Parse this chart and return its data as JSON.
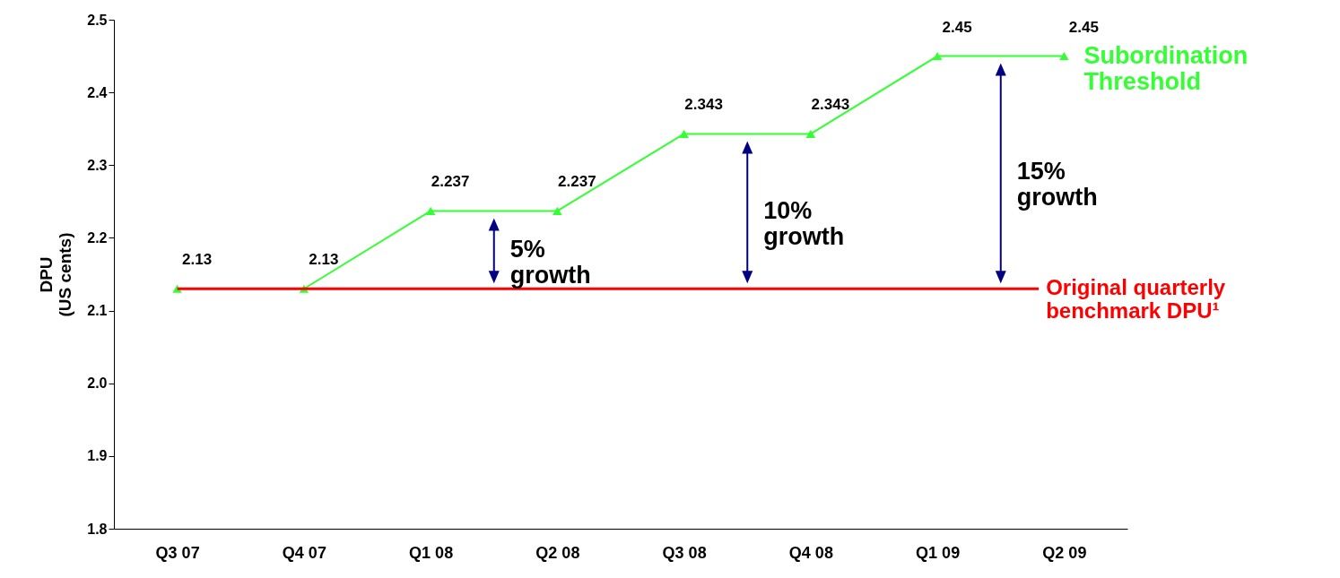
{
  "chart_data": {
    "type": "line",
    "categories": [
      "Q3 07",
      "Q4 07",
      "Q1 08",
      "Q2 08",
      "Q3 08",
      "Q4 08",
      "Q1 09",
      "Q2 09"
    ],
    "series": [
      {
        "name": "Subordination Threshold",
        "color": "#33ff33",
        "values": [
          2.13,
          2.13,
          2.237,
          2.237,
          2.343,
          2.343,
          2.45,
          2.45
        ]
      }
    ],
    "ylabel": "DPU\n(US cents)",
    "ylim": [
      1.8,
      2.5
    ],
    "yticks": [
      1.8,
      1.9,
      {
        "value": 2,
        "label": "2.0"
      },
      2.1,
      2.2,
      2.3,
      2.4,
      2.5
    ],
    "ref_lines": [
      {
        "axis": "y",
        "value": 2.13,
        "label": "Original quarterly\nbenchmark DPU¹",
        "color": "#ff0000"
      }
    ],
    "annotations": [
      "5% growth",
      "10% growth",
      "15% growth"
    ],
    "marker": "triangle",
    "line_style": "solid",
    "data_labels": true,
    "grid": false,
    "legend": false
  }
}
